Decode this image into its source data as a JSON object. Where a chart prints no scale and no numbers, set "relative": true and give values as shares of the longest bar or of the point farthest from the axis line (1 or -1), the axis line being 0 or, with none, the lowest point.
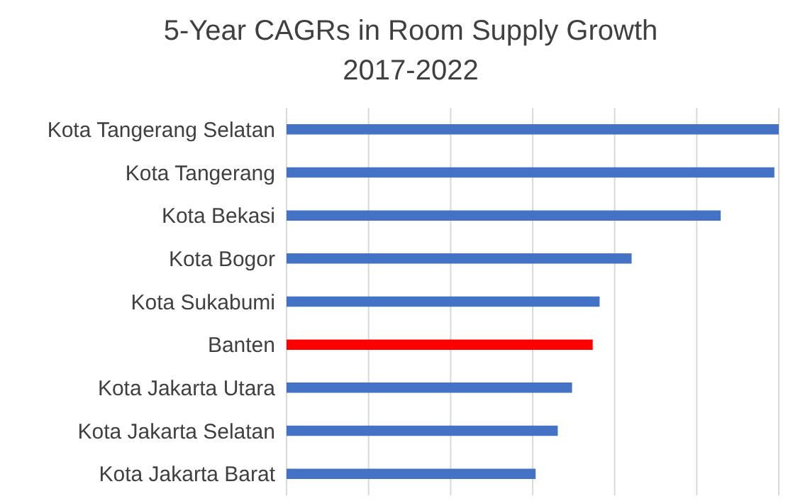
{
  "chart_data": {
    "type": "bar",
    "orientation": "horizontal",
    "relative": true,
    "title": "5-Year CAGRs in Room Supply Growth\n2017-2022",
    "categories": [
      "Kota Tangerang Selatan",
      "Kota Tangerang",
      "Kota Bekasi",
      "Kota Bogor",
      "Kota Sukabumi",
      "Banten",
      "Kota Jakarta Utara",
      "Kota Jakarta Selatan",
      "Kota Jakarta Barat"
    ],
    "values": [
      1,
      0.991,
      0.882,
      0.701,
      0.636,
      0.622,
      0.58,
      0.551,
      0.506
    ],
    "colors": [
      "#4472c4",
      "#4472c4",
      "#4472c4",
      "#4472c4",
      "#4472c4",
      "#ff0000",
      "#4472c4",
      "#4472c4",
      "#4472c4"
    ],
    "grid": "x"
  }
}
